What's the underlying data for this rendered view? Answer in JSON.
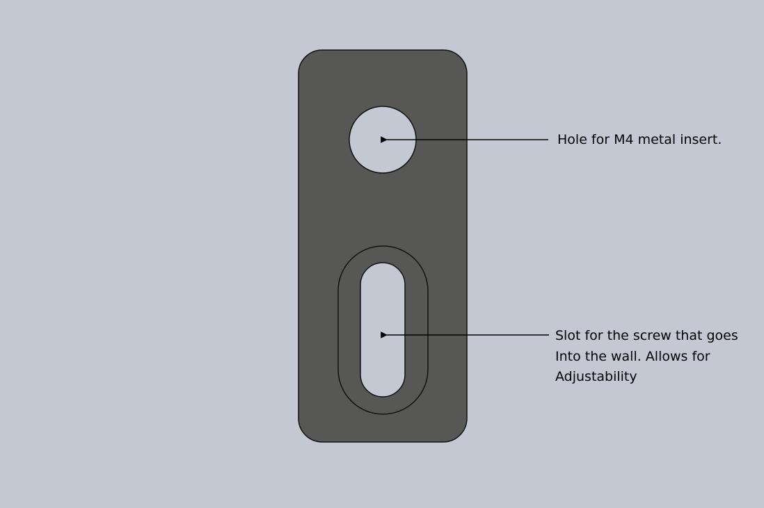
{
  "annotations": {
    "hole": {
      "text": "Hole for M4 metal insert."
    },
    "slot": {
      "lines": [
        "Slot for the screw that goes",
        "Into the wall. Allows for",
        "Adjustability"
      ]
    }
  },
  "colors": {
    "background": "#c4c8d2",
    "part_fill": "#575755",
    "outline": "#111111",
    "leader_line": "#000000"
  }
}
